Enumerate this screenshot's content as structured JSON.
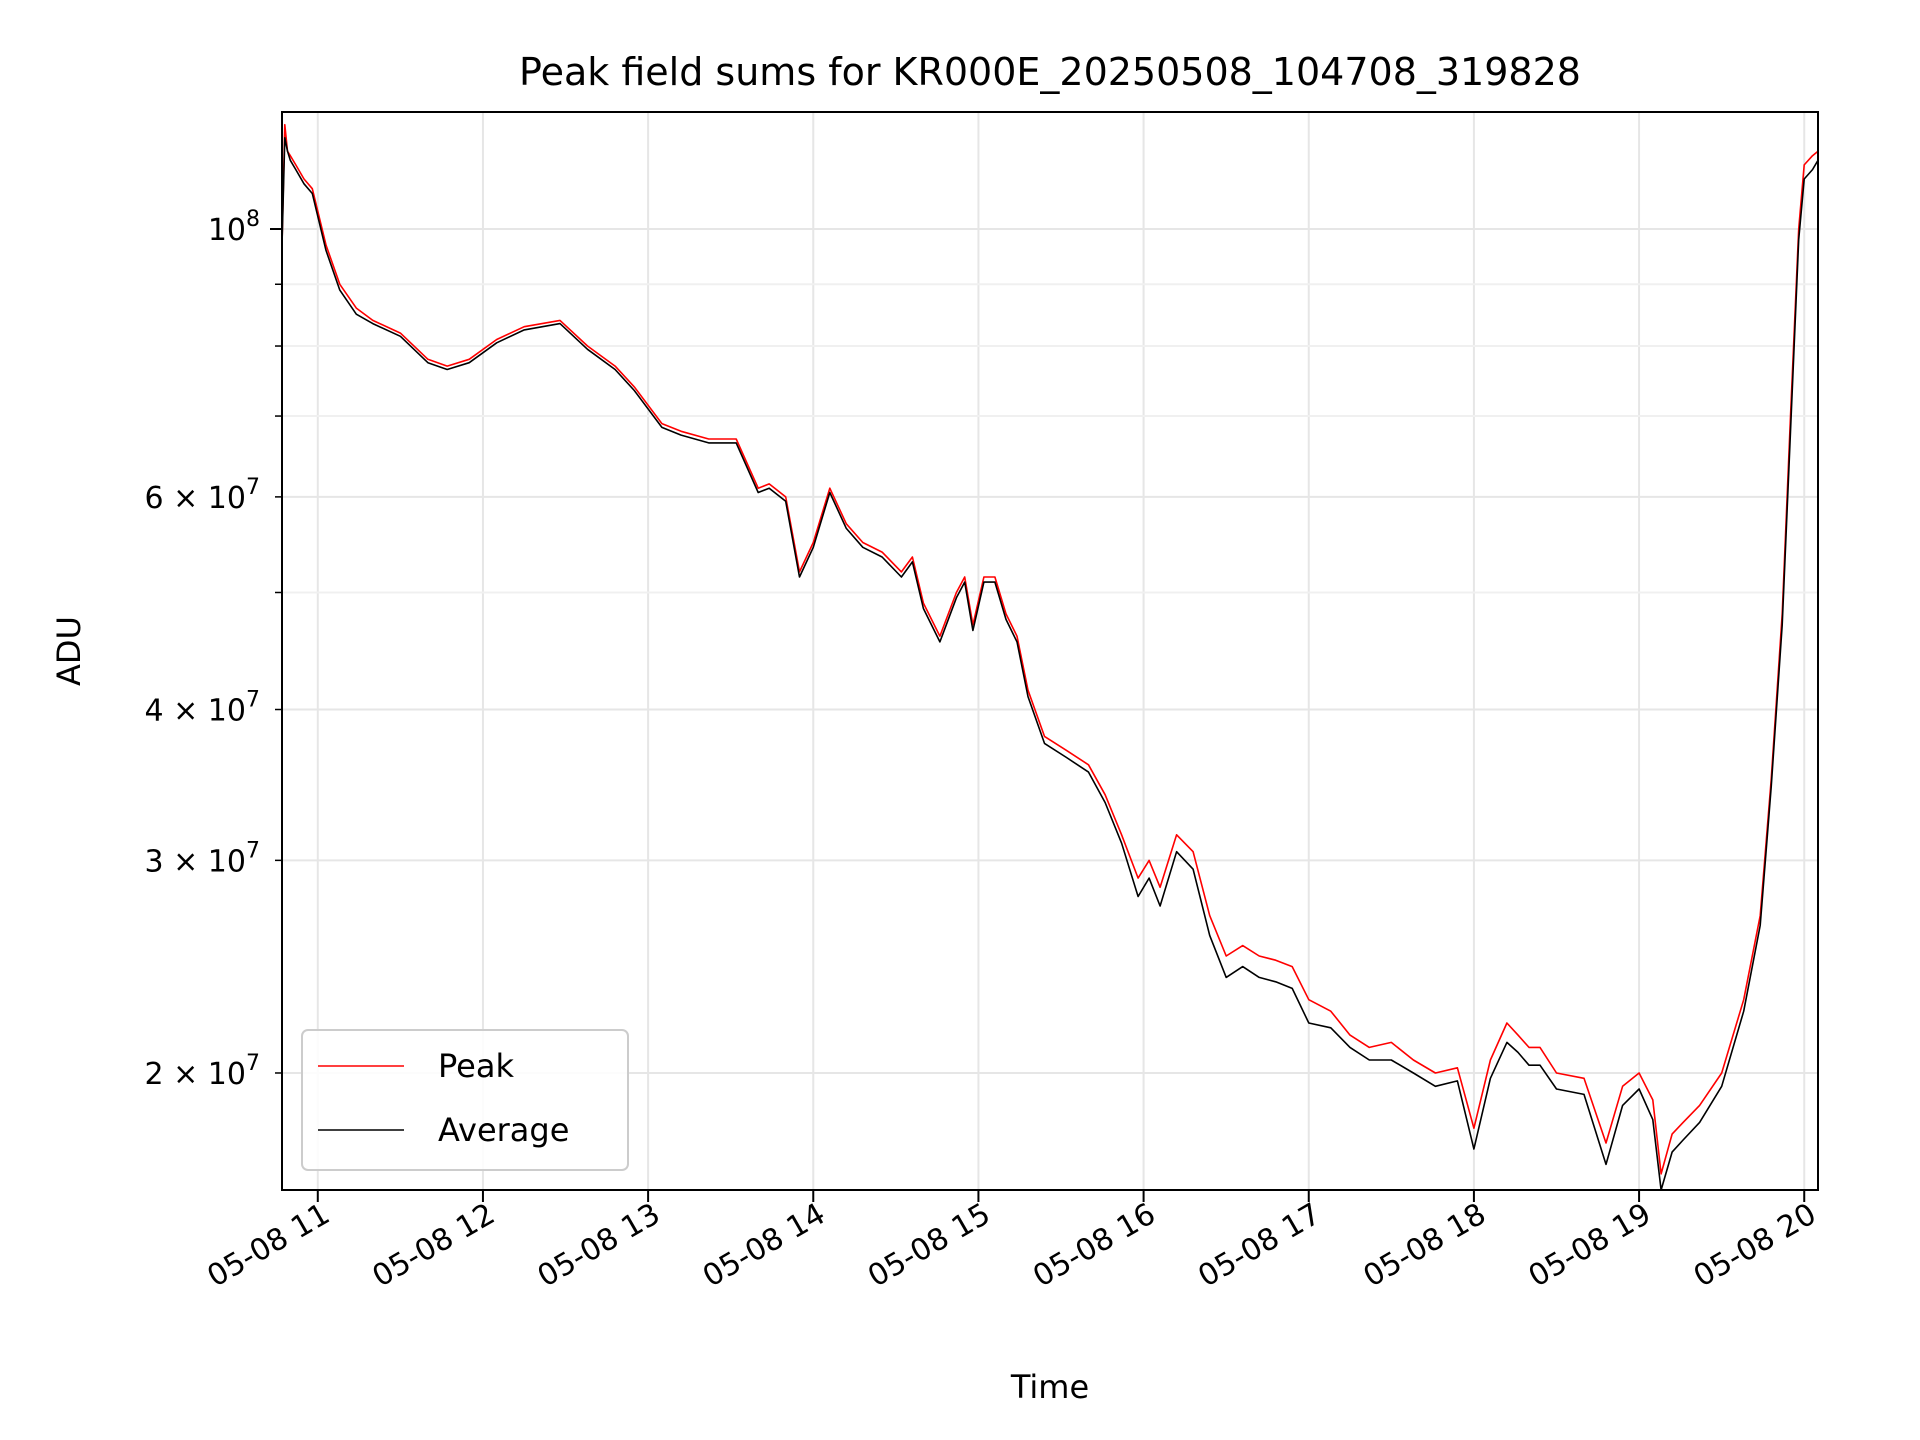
{
  "chart_data": {
    "type": "line",
    "title": "Peak field sums for KR000E_20250508_104708_319828",
    "xlabel": "Time",
    "ylabel": "ADU",
    "x_date": "2025-05-08",
    "xlim": [
      "10:47",
      "20:05"
    ],
    "x_ticks": [
      "11:00",
      "12:00",
      "13:00",
      "14:00",
      "15:00",
      "16:00",
      "17:00",
      "18:00",
      "19:00",
      "20:00"
    ],
    "x_tick_labels": [
      "05-08 11",
      "05-08 12",
      "05-08 13",
      "05-08 14",
      "05-08 15",
      "05-08 16",
      "05-08 17",
      "05-08 18",
      "05-08 19",
      "05-08 20"
    ],
    "y_scale": "log",
    "ylim": [
      16000000,
      125000000
    ],
    "y_major_ticks": [
      100000000
    ],
    "y_minor_ticks": [
      20000000,
      30000000,
      40000000,
      60000000
    ],
    "y_tick_labels": [
      {
        "value": 100000000,
        "base": "10",
        "exp": "8"
      },
      {
        "value": 60000000,
        "base": "6 × 10",
        "exp": "7"
      },
      {
        "value": 40000000,
        "base": "4 × 10",
        "exp": "7"
      },
      {
        "value": 30000000,
        "base": "3 × 10",
        "exp": "7"
      },
      {
        "value": 20000000,
        "base": "2 × 10",
        "exp": "7"
      }
    ],
    "grid": true,
    "legend_position": "lower-left",
    "x": [
      "10:47",
      "10:48",
      "10:49",
      "10:50",
      "10:52",
      "10:55",
      "10:58",
      "11:03",
      "11:08",
      "11:14",
      "11:20",
      "11:30",
      "11:40",
      "11:47",
      "11:55",
      "12:05",
      "12:15",
      "12:28",
      "12:38",
      "12:48",
      "12:55",
      "13:05",
      "13:12",
      "13:22",
      "13:32",
      "13:40",
      "13:44",
      "13:50",
      "13:55",
      "14:00",
      "14:06",
      "14:12",
      "14:18",
      "14:25",
      "14:32",
      "14:36",
      "14:40",
      "14:46",
      "14:52",
      "14:55",
      "14:58",
      "15:02",
      "15:06",
      "15:10",
      "15:14",
      "15:18",
      "15:24",
      "15:32",
      "15:40",
      "15:46",
      "15:52",
      "15:58",
      "16:02",
      "16:06",
      "16:12",
      "16:18",
      "16:24",
      "16:30",
      "16:36",
      "16:42",
      "16:48",
      "16:54",
      "17:00",
      "17:08",
      "17:15",
      "17:22",
      "17:30",
      "17:38",
      "17:46",
      "17:54",
      "18:00",
      "18:06",
      "18:12",
      "18:16",
      "18:20",
      "18:24",
      "18:30",
      "18:40",
      "18:48",
      "18:54",
      "19:00",
      "19:05",
      "19:08",
      "19:12",
      "19:16",
      "19:22",
      "19:30",
      "19:38",
      "19:44",
      "19:48",
      "19:52",
      "19:55",
      "19:58",
      "20:00",
      "20:03",
      "20:05"
    ],
    "series": [
      {
        "name": "Peak",
        "color": "#ff0000",
        "values": [
          97000000,
          122000000,
          116000000,
          115000000,
          113000000,
          110000000,
          108000000,
          97000000,
          90000000,
          86000000,
          84000000,
          82000000,
          78000000,
          77000000,
          78000000,
          81000000,
          83000000,
          84000000,
          80000000,
          77000000,
          74000000,
          69000000,
          68000000,
          67000000,
          67000000,
          61000000,
          61500000,
          60000000,
          52000000,
          55000000,
          61000000,
          57000000,
          55000000,
          54000000,
          52000000,
          53500000,
          49000000,
          46000000,
          50000000,
          51500000,
          47000000,
          51500000,
          51500000,
          48000000,
          46000000,
          41500000,
          38000000,
          37000000,
          36000000,
          34000000,
          31500000,
          29000000,
          30000000,
          28500000,
          31500000,
          30500000,
          27000000,
          25000000,
          25500000,
          25000000,
          24800000,
          24500000,
          23000000,
          22500000,
          21500000,
          21000000,
          21200000,
          20500000,
          20000000,
          20200000,
          18000000,
          20500000,
          22000000,
          21500000,
          21000000,
          21000000,
          20000000,
          19800000,
          17500000,
          19500000,
          20000000,
          19000000,
          16500000,
          17800000,
          18200000,
          18800000,
          20000000,
          23000000,
          27000000,
          35000000,
          48000000,
          70000000,
          100000000,
          113000000,
          115000000,
          116000000
        ]
      },
      {
        "name": "Average",
        "color": "#000000",
        "values": [
          97000000,
          119000000,
          116000000,
          114000000,
          112000000,
          109000000,
          107000000,
          96000000,
          89000000,
          85000000,
          83500000,
          81500000,
          77500000,
          76500000,
          77500000,
          80500000,
          82500000,
          83500000,
          79500000,
          76500000,
          73500000,
          68500000,
          67500000,
          66500000,
          66500000,
          60500000,
          61000000,
          59500000,
          51500000,
          54500000,
          60500000,
          56500000,
          54500000,
          53500000,
          51500000,
          53000000,
          48500000,
          45500000,
          49500000,
          51000000,
          46500000,
          51000000,
          51000000,
          47500000,
          45500000,
          41000000,
          37500000,
          36500000,
          35500000,
          33500000,
          31000000,
          28000000,
          29000000,
          27500000,
          30500000,
          29500000,
          26000000,
          24000000,
          24500000,
          24000000,
          23800000,
          23500000,
          22000000,
          21800000,
          21000000,
          20500000,
          20500000,
          20000000,
          19500000,
          19700000,
          17300000,
          19800000,
          21200000,
          20800000,
          20300000,
          20300000,
          19400000,
          19200000,
          16800000,
          18800000,
          19400000,
          18300000,
          16000000,
          17200000,
          17600000,
          18200000,
          19500000,
          22500000,
          26500000,
          34500000,
          47000000,
          68000000,
          98000000,
          110000000,
          112000000,
          114000000
        ]
      }
    ]
  }
}
